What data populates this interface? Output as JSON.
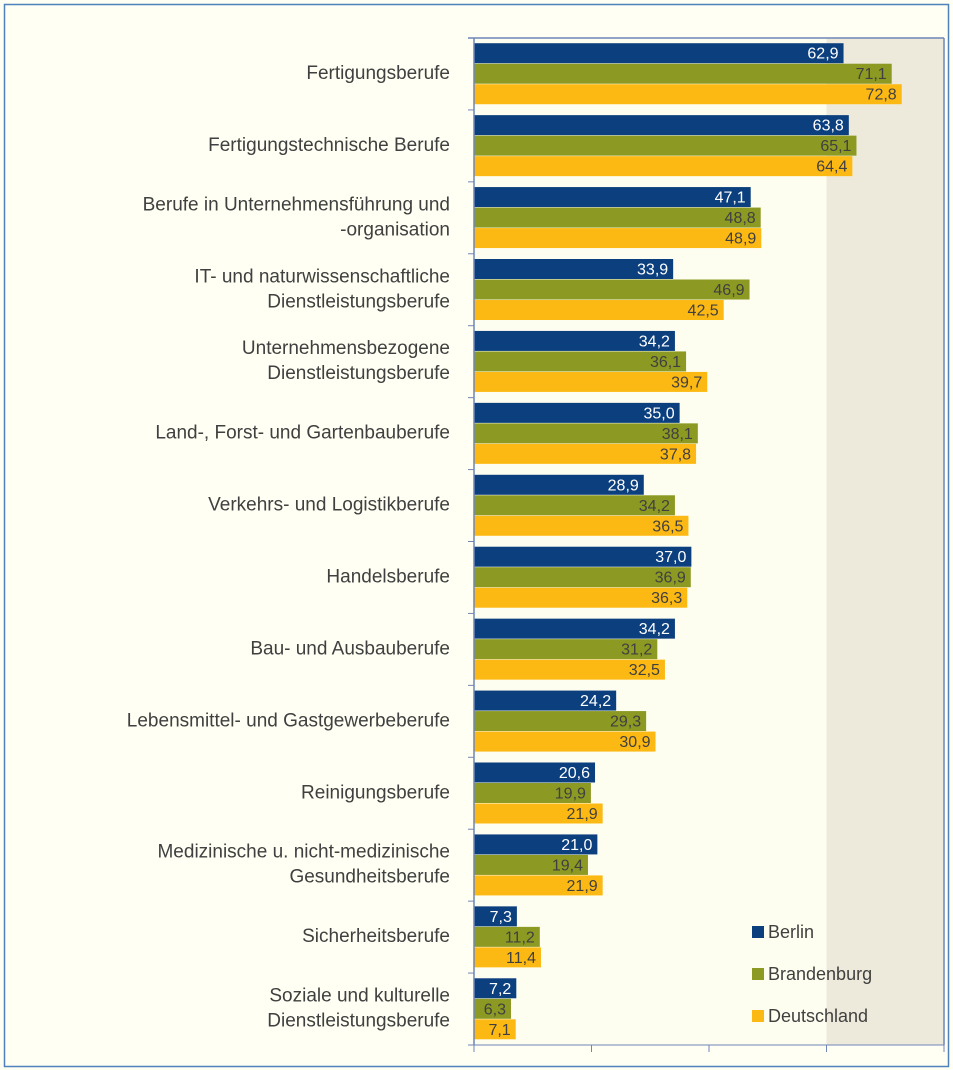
{
  "chart_data": {
    "type": "barh",
    "categories": [
      "Fertigungsberufe",
      "Fertigungstechnische Berufe",
      [
        "Berufe in Unternehmensführung und",
        "-organisation"
      ],
      [
        "IT- und naturwissenschaftliche",
        "Dienstleistungsberufe"
      ],
      [
        "Unternehmensbezogene",
        "Dienstleistungsberufe"
      ],
      "Land-, Forst- und Gartenbauberufe",
      "Verkehrs- und Logistikberufe",
      "Handelsberufe",
      "Bau- und Ausbauberufe",
      "Lebensmittel- und Gastgewerbeberufe",
      "Reinigungsberufe",
      [
        "Medizinische u. nicht-medizinische",
        "Gesundheitsberufe"
      ],
      "Sicherheitsberufe",
      [
        "Soziale und kulturelle",
        "Dienstleistungsberufe"
      ]
    ],
    "series": [
      {
        "name": "Berlin",
        "color": "#0b3f7e",
        "label_color": "#ffffff",
        "values": [
          62.9,
          63.8,
          47.1,
          33.9,
          34.2,
          35.0,
          28.9,
          37.0,
          34.2,
          24.2,
          20.6,
          21.0,
          7.3,
          7.2
        ],
        "value_labels": [
          "62,9",
          "63,8",
          "47,1",
          "33,9",
          "34,2",
          "35,0",
          "28,9",
          "37,0",
          "34,2",
          "24,2",
          "20,6",
          "21,0",
          "7,3",
          "7,2"
        ]
      },
      {
        "name": "Brandenburg",
        "color": "#8c9a23",
        "label_color": "#404040",
        "values": [
          71.1,
          65.1,
          48.8,
          46.9,
          36.1,
          38.1,
          34.2,
          36.9,
          31.2,
          29.3,
          19.9,
          19.4,
          11.2,
          6.3
        ],
        "value_labels": [
          "71,1",
          "65,1",
          "48,8",
          "46,9",
          "36,1",
          "38,1",
          "34,2",
          "36,9",
          "31,2",
          "29,3",
          "19,9",
          "19,4",
          "11,2",
          "6,3"
        ]
      },
      {
        "name": "Deutschland",
        "color": "#fdb913",
        "label_color": "#404040",
        "values": [
          72.8,
          64.4,
          48.9,
          42.5,
          39.7,
          37.8,
          36.5,
          36.3,
          32.5,
          30.9,
          21.9,
          21.9,
          11.4,
          7.1
        ],
        "value_labels": [
          "72,8",
          "64,4",
          "48,9",
          "42,5",
          "39,7",
          "37,8",
          "36,5",
          "36,3",
          "32,5",
          "30,9",
          "21,9",
          "21,9",
          "11,4",
          "7,1"
        ]
      }
    ],
    "xlim": [
      0,
      80
    ],
    "xticks": [
      0,
      20,
      40,
      60,
      80
    ],
    "legend": "lower right"
  }
}
